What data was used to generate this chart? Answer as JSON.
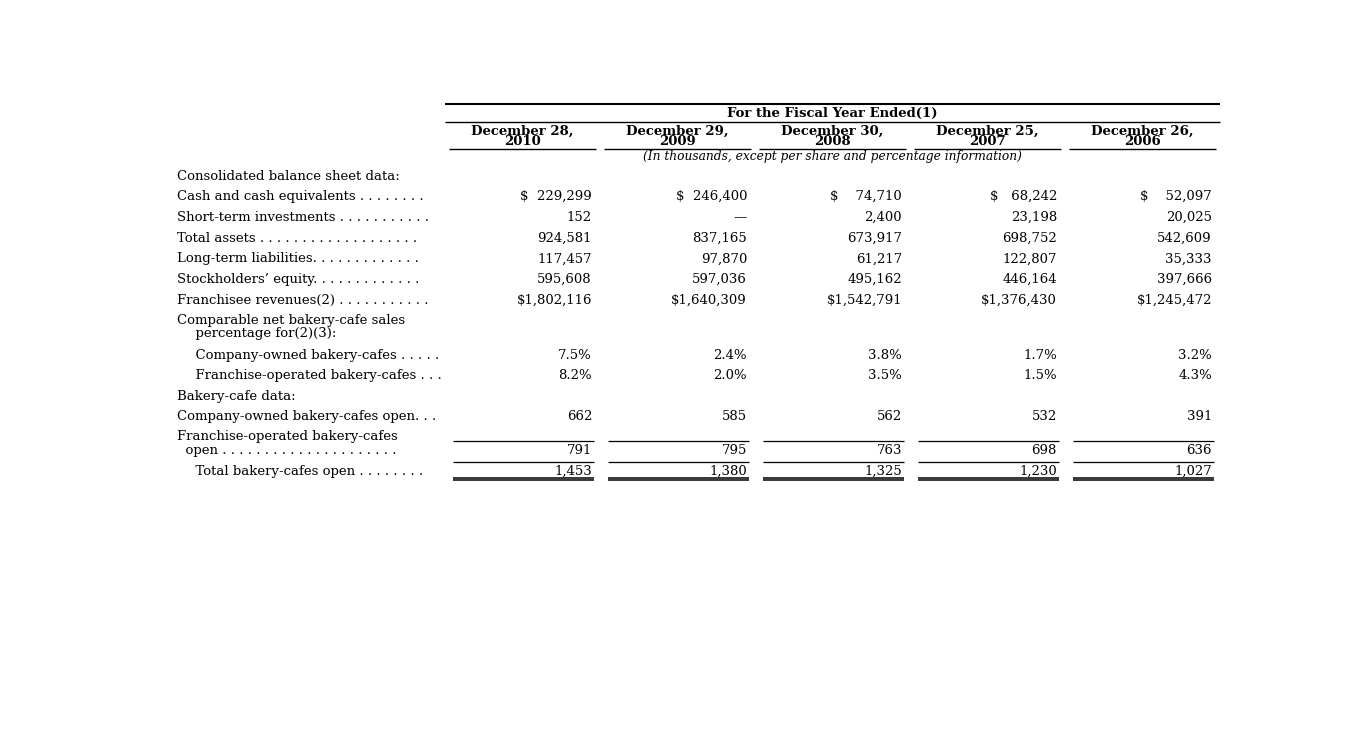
{
  "title": "For the Fiscal Year Ended(1)",
  "subtitle": "(In thousands, except per share and percentage information)",
  "col_headers": [
    [
      "December 28,",
      "2010"
    ],
    [
      "December 29,",
      "2009"
    ],
    [
      "December 30,",
      "2008"
    ],
    [
      "December 25,",
      "2007"
    ],
    [
      "December 26,",
      "2006"
    ]
  ],
  "rows": [
    {
      "label1": "Consolidated balance sheet data:",
      "label2": null,
      "vals": null,
      "type": "section"
    },
    {
      "label1": "Cash and cash equivalents . . . . . . . .",
      "label2": null,
      "vals": [
        "$  229,299",
        "$  246,400",
        "$    74,710",
        "$   68,242",
        "$    52,097"
      ],
      "type": "data"
    },
    {
      "label1": "Short-term investments . . . . . . . . . . .",
      "label2": null,
      "vals": [
        "152",
        "—",
        "2,400",
        "23,198",
        "20,025"
      ],
      "type": "data"
    },
    {
      "label1": "Total assets . . . . . . . . . . . . . . . . . . .",
      "label2": null,
      "vals": [
        "924,581",
        "837,165",
        "673,917",
        "698,752",
        "542,609"
      ],
      "type": "data"
    },
    {
      "label1": "Long-term liabilities. . . . . . . . . . . . .",
      "label2": null,
      "vals": [
        "117,457",
        "97,870",
        "61,217",
        "122,807",
        "35,333"
      ],
      "type": "data"
    },
    {
      "label1": "Stockholders’ equity. . . . . . . . . . . . .",
      "label2": null,
      "vals": [
        "595,608",
        "597,036",
        "495,162",
        "446,164",
        "397,666"
      ],
      "type": "data"
    },
    {
      "label1": "Franchisee revenues(2) . . . . . . . . . . .",
      "label2": null,
      "vals": [
        "$1,802,116",
        "$1,640,309",
        "$1,542,791",
        "$1,376,430",
        "$1,245,472"
      ],
      "type": "data"
    },
    {
      "label1": "Comparable net bakery-cafe sales",
      "label2": "  percentage for(2)(3):",
      "vals": null,
      "type": "section2"
    },
    {
      "label1": "  Company-owned bakery-cafes . . . . .",
      "label2": null,
      "vals": [
        "7.5%",
        "2.4%",
        "3.8%",
        "1.7%",
        "3.2%"
      ],
      "type": "data_indent"
    },
    {
      "label1": "  Franchise-operated bakery-cafes . . .",
      "label2": null,
      "vals": [
        "8.2%",
        "2.0%",
        "3.5%",
        "1.5%",
        "4.3%"
      ],
      "type": "data_indent"
    },
    {
      "label1": "Bakery-cafe data:",
      "label2": null,
      "vals": null,
      "type": "section"
    },
    {
      "label1": "Company-owned bakery-cafes open. . .",
      "label2": null,
      "vals": [
        "662",
        "585",
        "562",
        "532",
        "391"
      ],
      "type": "data"
    },
    {
      "label1": "Franchise-operated bakery-cafes",
      "label2": "  open . . . . . . . . . . . . . . . . . . . . .",
      "vals": [
        "791",
        "795",
        "763",
        "698",
        "636"
      ],
      "type": "data2_topline"
    },
    {
      "label1": "  Total bakery-cafes open . . . . . . . .",
      "label2": null,
      "vals": [
        "1,453",
        "1,380",
        "1,325",
        "1,230",
        "1,027"
      ],
      "type": "data_doubleline"
    }
  ],
  "bg_color": "#ffffff",
  "font_family": "DejaVu Serif"
}
